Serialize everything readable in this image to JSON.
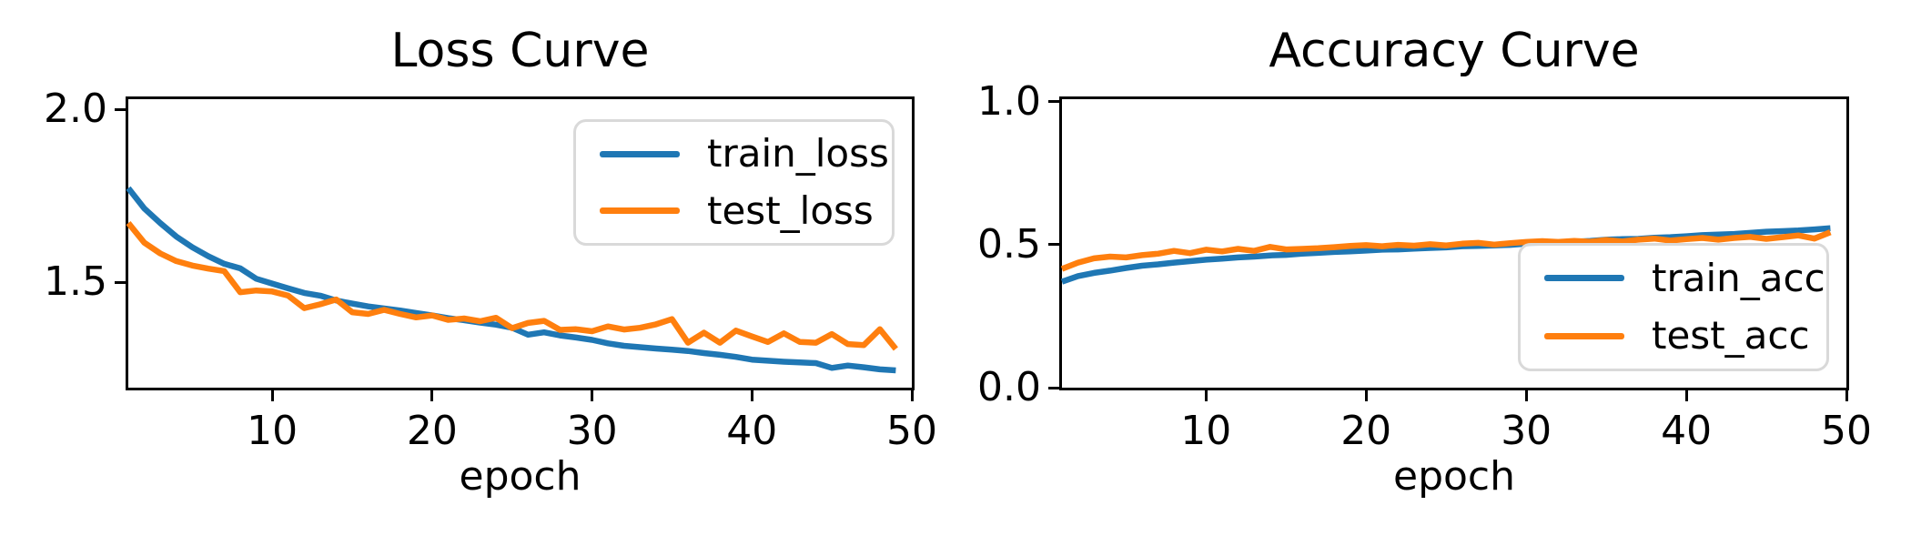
{
  "figure": {
    "background": "#ffffff",
    "text_color": "#000000",
    "spine_color": "#000000"
  },
  "chart_data": [
    {
      "type": "line",
      "title": "Loss Curve",
      "xlabel": "epoch",
      "ylabel": "",
      "grid": false,
      "xlim": [
        1,
        50
      ],
      "ylim": [
        1.195,
        2.029
      ],
      "xticks": [
        10,
        20,
        30,
        40,
        50
      ],
      "yticks": [
        1.5,
        2.0
      ],
      "ytick_labels": [
        "1.5",
        "2.0"
      ],
      "legend": {
        "position": "upper right"
      },
      "x": [
        1,
        2,
        3,
        4,
        5,
        6,
        7,
        8,
        9,
        10,
        11,
        12,
        13,
        14,
        15,
        16,
        17,
        18,
        19,
        20,
        21,
        22,
        23,
        24,
        25,
        26,
        27,
        28,
        29,
        30,
        31,
        32,
        33,
        34,
        35,
        36,
        37,
        38,
        39,
        40,
        41,
        42,
        43,
        44,
        45,
        46,
        47,
        48,
        49
      ],
      "series": [
        {
          "name": "train_loss",
          "color": "#1f77b4",
          "values": [
            1.772,
            1.713,
            1.671,
            1.632,
            1.601,
            1.575,
            1.553,
            1.54,
            1.51,
            1.496,
            1.482,
            1.469,
            1.461,
            1.447,
            1.438,
            1.43,
            1.424,
            1.418,
            1.411,
            1.404,
            1.396,
            1.39,
            1.383,
            1.377,
            1.368,
            1.348,
            1.355,
            1.346,
            1.34,
            1.333,
            1.323,
            1.316,
            1.312,
            1.308,
            1.305,
            1.301,
            1.295,
            1.29,
            1.284,
            1.276,
            1.273,
            1.27,
            1.268,
            1.266,
            1.252,
            1.259,
            1.254,
            1.248,
            1.245
          ]
        },
        {
          "name": "test_loss",
          "color": "#ff7f0e",
          "values": [
            1.671,
            1.614,
            1.583,
            1.561,
            1.548,
            1.539,
            1.532,
            1.471,
            1.476,
            1.473,
            1.461,
            1.425,
            1.436,
            1.45,
            1.413,
            1.408,
            1.42,
            1.408,
            1.398,
            1.404,
            1.391,
            1.395,
            1.387,
            1.397,
            1.367,
            1.382,
            1.388,
            1.362,
            1.364,
            1.358,
            1.372,
            1.363,
            1.368,
            1.378,
            1.393,
            1.325,
            1.354,
            1.325,
            1.36,
            1.343,
            1.327,
            1.352,
            1.327,
            1.325,
            1.35,
            1.321,
            1.318,
            1.364,
            1.307
          ]
        }
      ]
    },
    {
      "type": "line",
      "title": "Accuracy Curve",
      "xlabel": "epoch",
      "ylabel": "",
      "grid": false,
      "xlim": [
        1,
        50
      ],
      "ylim": [
        0.0,
        1.008
      ],
      "xticks": [
        10,
        20,
        30,
        40,
        50
      ],
      "yticks": [
        0.0,
        0.5,
        1.0
      ],
      "ytick_labels": [
        "0.0",
        "0.5",
        "1.0"
      ],
      "legend": {
        "position": "lower right"
      },
      "x": [
        1,
        2,
        3,
        4,
        5,
        6,
        7,
        8,
        9,
        10,
        11,
        12,
        13,
        14,
        15,
        16,
        17,
        18,
        19,
        20,
        21,
        22,
        23,
        24,
        25,
        26,
        27,
        28,
        29,
        30,
        31,
        32,
        33,
        34,
        35,
        36,
        37,
        38,
        39,
        40,
        41,
        42,
        43,
        44,
        45,
        46,
        47,
        48,
        49
      ],
      "series": [
        {
          "name": "train_acc",
          "color": "#1f77b4",
          "values": [
            0.37,
            0.39,
            0.401,
            0.409,
            0.418,
            0.426,
            0.431,
            0.437,
            0.442,
            0.447,
            0.451,
            0.455,
            0.458,
            0.462,
            0.464,
            0.468,
            0.471,
            0.474,
            0.476,
            0.479,
            0.482,
            0.483,
            0.486,
            0.488,
            0.49,
            0.494,
            0.495,
            0.497,
            0.499,
            0.503,
            0.507,
            0.508,
            0.51,
            0.513,
            0.517,
            0.519,
            0.52,
            0.524,
            0.526,
            0.529,
            0.533,
            0.535,
            0.537,
            0.541,
            0.545,
            0.547,
            0.549,
            0.553,
            0.557
          ]
        },
        {
          "name": "test_acc",
          "color": "#ff7f0e",
          "values": [
            0.415,
            0.437,
            0.452,
            0.458,
            0.455,
            0.463,
            0.468,
            0.478,
            0.47,
            0.482,
            0.476,
            0.485,
            0.478,
            0.492,
            0.483,
            0.485,
            0.487,
            0.491,
            0.495,
            0.498,
            0.494,
            0.499,
            0.496,
            0.501,
            0.497,
            0.503,
            0.506,
            0.5,
            0.505,
            0.509,
            0.512,
            0.509,
            0.513,
            0.51,
            0.516,
            0.511,
            0.517,
            0.521,
            0.514,
            0.519,
            0.523,
            0.517,
            0.523,
            0.527,
            0.52,
            0.526,
            0.532,
            0.521,
            0.543
          ]
        }
      ]
    }
  ]
}
